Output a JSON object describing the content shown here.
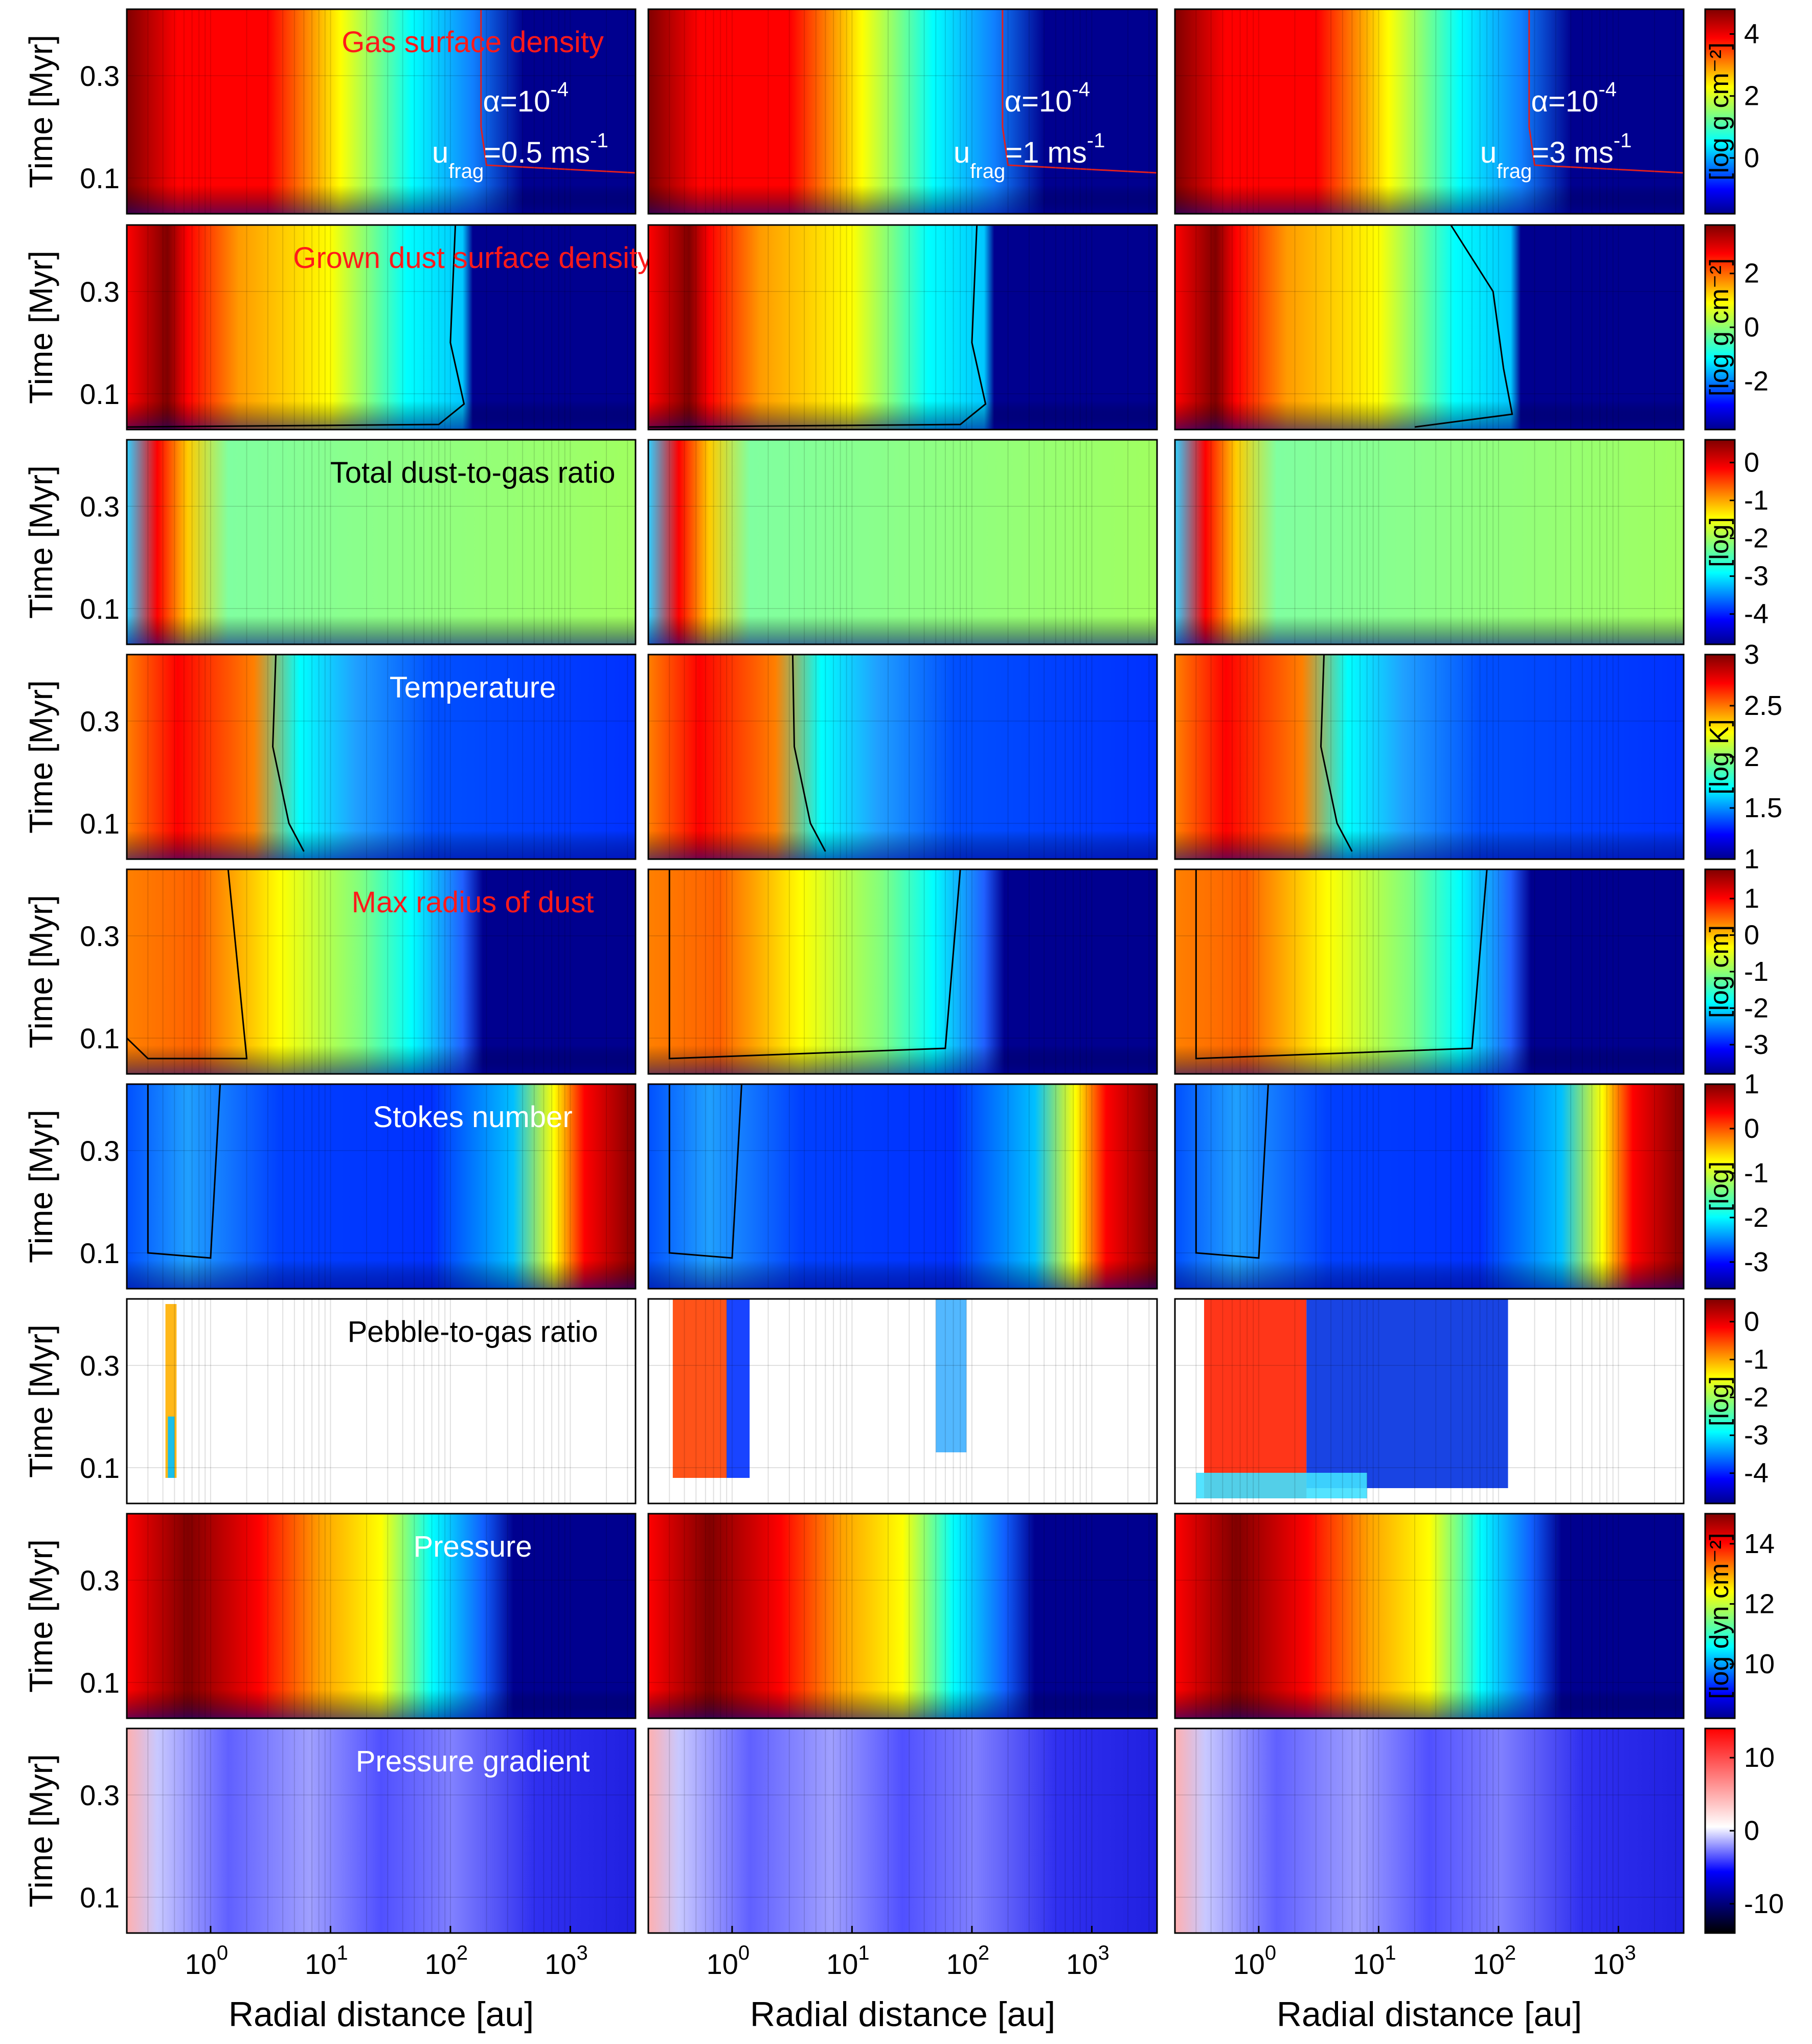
{
  "figure": {
    "xlabel": "Radial distance [au]",
    "ylabel": "Time [Myr]",
    "columns": [
      {
        "alpha_base": "10",
        "alpha_exp": "-4",
        "ufrag": "=0.5 ms",
        "ufrag_exp": "-1"
      },
      {
        "alpha_base": "10",
        "alpha_exp": "-4",
        "ufrag": "=1 ms",
        "ufrag_exp": "-1"
      },
      {
        "alpha_base": "10",
        "alpha_exp": "-4",
        "ufrag": "=3 ms",
        "ufrag_exp": "-1"
      }
    ],
    "alpha_symbol": "α=",
    "ufrag_main": "u",
    "ufrag_sub": "frag"
  },
  "chart_data": {
    "type": "heatmap",
    "x_axis": {
      "scale": "log",
      "range_au": [
        0.2,
        3500
      ],
      "ticks": [
        1,
        10,
        100,
        1000
      ],
      "tick_labels": [
        "10",
        "10",
        "10",
        "10"
      ],
      "tick_exps": [
        "0",
        "1",
        "2",
        "3"
      ]
    },
    "y_axis": {
      "range_myr": [
        0.03,
        0.43
      ],
      "ticks": [
        0.1,
        0.3
      ],
      "tick_labels": [
        "0.1",
        "0.3"
      ]
    },
    "grid": "on",
    "rows": [
      {
        "title": "Gas surface density",
        "title_color": "#ff1a1a",
        "colormap": "jet",
        "cb_label": "[log g cm⁻²]",
        "cb_range": [
          -1.8,
          4.8
        ],
        "cb_ticks": [
          0,
          2,
          4
        ],
        "cb_tick_labels": [
          "0",
          "2",
          "4"
        ]
      },
      {
        "title": "Grown dust surface density",
        "title_color": "#ff1a1a",
        "colormap": "jet",
        "cb_label": "[log g cm⁻²]",
        "cb_range": [
          -3.8,
          3.8
        ],
        "cb_ticks": [
          -2,
          0,
          2
        ],
        "cb_tick_labels": [
          "-2",
          "0",
          "2"
        ]
      },
      {
        "title": "Total dust-to-gas ratio",
        "title_color": "#000000",
        "colormap": "jet",
        "cb_label": "[log]",
        "cb_range": [
          -4.8,
          0.6
        ],
        "cb_ticks": [
          -4,
          -3,
          -2,
          -1,
          0
        ],
        "cb_tick_labels": [
          "-4",
          "-3",
          "-2",
          "-1",
          "0"
        ]
      },
      {
        "title": "Temperature",
        "title_color": "#ffffff",
        "colormap": "jet",
        "cb_label": "[log K]",
        "cb_range": [
          1,
          3
        ],
        "cb_ticks": [
          1,
          1.5,
          2,
          2.5,
          3
        ],
        "cb_tick_labels": [
          "1",
          "1.5",
          "2",
          "2.5",
          "3"
        ]
      },
      {
        "title": "Max radius of dust",
        "title_color": "#ff1a1a",
        "colormap": "jet",
        "cb_label": "[log cm]",
        "cb_range": [
          -3.8,
          1.8
        ],
        "cb_ticks": [
          -3,
          -2,
          -1,
          0,
          1
        ],
        "cb_tick_labels": [
          "-3",
          "-2",
          "-1",
          "0",
          "1"
        ]
      },
      {
        "title": "Stokes number",
        "title_color": "#ffffff",
        "colormap": "jet",
        "cb_label": "[log]",
        "cb_range": [
          -3.6,
          1
        ],
        "cb_ticks": [
          -3,
          -2,
          -1,
          0,
          1
        ],
        "cb_tick_labels": [
          "-3",
          "-2",
          "-1",
          "0",
          "1"
        ]
      },
      {
        "title": "Pebble-to-gas ratio",
        "title_color": "#000000",
        "colormap": "jet",
        "cb_label": "[log]",
        "cb_range": [
          -4.8,
          0.6
        ],
        "cb_ticks": [
          -4,
          -3,
          -2,
          -1,
          0
        ],
        "cb_tick_labels": [
          "-4",
          "-3",
          "-2",
          "-1",
          "0"
        ]
      },
      {
        "title": "Pressure",
        "title_color": "#ffffff",
        "colormap": "jet",
        "cb_label": "[log dyn cm⁻²]",
        "cb_range": [
          8.2,
          15
        ],
        "cb_ticks": [
          10,
          12,
          14
        ],
        "cb_tick_labels": [
          "10",
          "12",
          "14"
        ]
      },
      {
        "title": "Pressure gradient",
        "title_color": "#ffffff",
        "colormap": "diverging",
        "cb_label": "",
        "cb_range": [
          -14,
          14
        ],
        "cb_ticks": [
          -10,
          0,
          10
        ],
        "cb_tick_labels": [
          "-10",
          "0",
          "10"
        ]
      }
    ],
    "colors": {
      "jet": [
        "#00008f",
        "#0000ff",
        "#00ffff",
        "#ffff00",
        "#ff0000",
        "#800000"
      ],
      "diverging": [
        "#000000",
        "#0000ff",
        "#ffffff",
        "#ff0000"
      ],
      "gas_contour": "#e02020",
      "contour": "#000000"
    }
  }
}
